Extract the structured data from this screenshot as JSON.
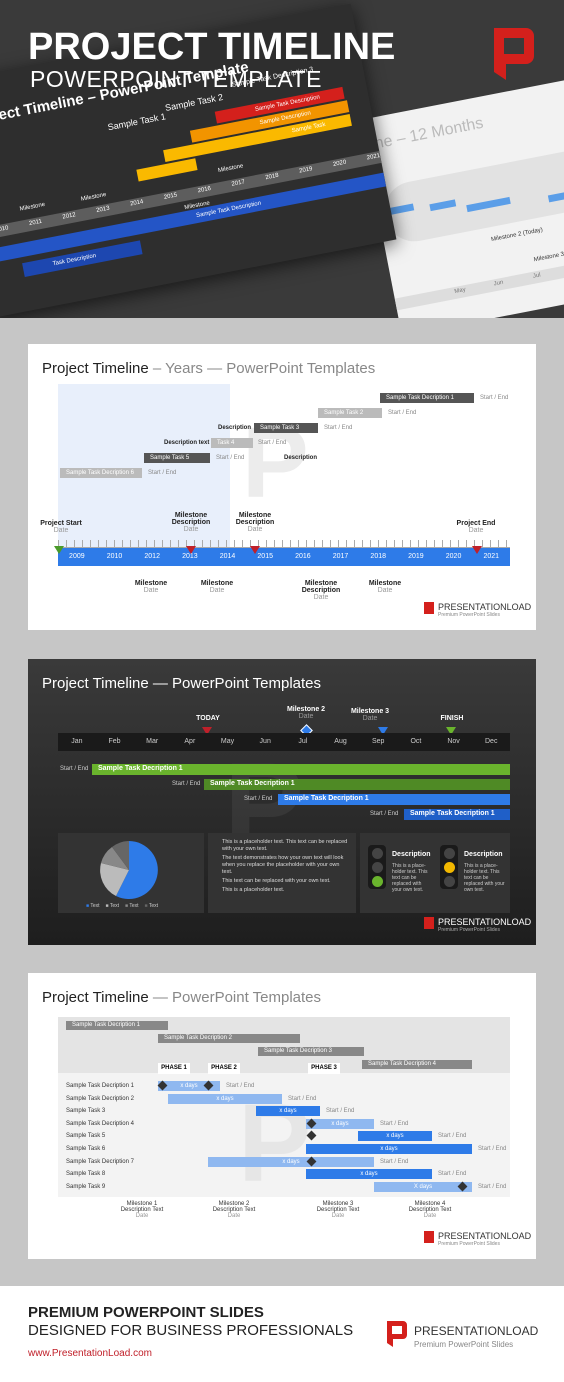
{
  "hero": {
    "title": "PROJECT TIMELINE",
    "subtitle": "POWERPOINT TEMPLATE",
    "preview_left": {
      "title": "Project Timeline – PowerPoint Template",
      "tasks": [
        "Sample Task 1",
        "Sample Task 2",
        "Sample Task Description 3"
      ],
      "bars": [
        "Sample Task Description",
        "Sample Description",
        "Sample Task",
        "Sample Task Description",
        "Task Description"
      ],
      "milestones": [
        "Milestone",
        "Milestone",
        "Milestone",
        "Milestone"
      ],
      "years": [
        "2010",
        "2011",
        "2012",
        "2013",
        "2014",
        "2015",
        "2016",
        "2017",
        "2018",
        "2019",
        "2020",
        "2021"
      ]
    },
    "preview_right": {
      "title_fragment": "ne – 12 Months",
      "milestones": [
        "Milestone 2 (Today)",
        "Milestone 3"
      ],
      "months": [
        "May",
        "Jun",
        "Jul"
      ]
    }
  },
  "slide1": {
    "title_bold": "Project Timeline",
    "title_rest": " – Years — PowerPoint Templates",
    "years": [
      "2009",
      "2010",
      "2012",
      "2013",
      "2014",
      "2015",
      "2016",
      "2017",
      "2018",
      "2019",
      "2020",
      "2021"
    ],
    "bars": [
      {
        "label": "Sample Task Decription 1",
        "note": "Start / End"
      },
      {
        "label": "Sample Task 2",
        "note": "Start / End"
      },
      {
        "label": "Sample Task 3",
        "note": "Start / End",
        "left": "Description"
      },
      {
        "label": "Task 4",
        "note": "Start / End",
        "left": "Description text"
      },
      {
        "label": "Sample Task 5",
        "note": "Start / End"
      },
      {
        "label": "Sample Task Decription 6",
        "note": "Start / End"
      }
    ],
    "description": "Description",
    "top_labels": [
      {
        "title": "Project Start",
        "sub": "Date"
      },
      {
        "title": "Milestone\nDescription",
        "sub": "Date"
      },
      {
        "title": "Milestone\nDescription",
        "sub": "Date"
      },
      {
        "title": "Project End",
        "sub": "Date"
      }
    ],
    "bottom_labels": [
      {
        "title": "Milestone",
        "sub": "Date"
      },
      {
        "title": "Milestone",
        "sub": "Date"
      },
      {
        "title": "Milestone\nDescription",
        "sub": "Date"
      },
      {
        "title": "Milestone",
        "sub": "Date"
      }
    ]
  },
  "slide2": {
    "title": "Project Timeline — PowerPoint Templates",
    "months": [
      "Jan",
      "Feb",
      "Mar",
      "Apr",
      "May",
      "Jun",
      "Jul",
      "Aug",
      "Sep",
      "Oct",
      "Nov",
      "Dec"
    ],
    "markers": [
      {
        "title": "TODAY",
        "sub": ""
      },
      {
        "title": "Milestone 2",
        "sub": "Date"
      },
      {
        "title": "Milestone 3",
        "sub": "Date"
      },
      {
        "title": "FINISH",
        "sub": ""
      }
    ],
    "bars": [
      {
        "note": "Start / End",
        "label": "Sample Task Decription 1"
      },
      {
        "note": "Start / End",
        "label": "Sample Task Decription 1"
      },
      {
        "note": "Start / End",
        "label": "Sample Task Decription 1"
      },
      {
        "note": "Start / End",
        "label": "Sample Task Decription 1"
      }
    ],
    "legend": [
      "Text",
      "Text",
      "Text",
      "Text"
    ],
    "bullets": [
      "This is a placeholder text. This text can be replaced with your own text.",
      "The text demonstrates how your own text will look when you replace the placeholder with your own text.",
      "This text can be replaced with your own text.",
      "This is a placeholder text."
    ],
    "lights": [
      {
        "title": "Description",
        "text": "This is a place-holder text. This text can be replaced with your own text."
      },
      {
        "title": "Description",
        "text": "This is a place-holder text. This text can be replaced with your own text."
      }
    ],
    "colors": {
      "bg": "#2b2b2b",
      "green": "#6ab42d",
      "blue": "#2e7be8"
    }
  },
  "slide3": {
    "title_bold": "Project Timeline",
    "title_rest": " — PowerPoint Templates",
    "top_bars": [
      "Sample Task Decription 1",
      "Sample Task Decription 2",
      "Sample Task Decription 3",
      "Sample Task Decription 4"
    ],
    "phases": [
      "PHASE 1",
      "PHASE 2",
      "PHASE 3"
    ],
    "rows": [
      {
        "label": "Sample Task Decription 1",
        "bar": "x days",
        "note": "Start / End"
      },
      {
        "label": "Sample Task Decription 2",
        "bar": "x days",
        "note": "Start / End"
      },
      {
        "label": "Sample Task 3",
        "bar": "x days",
        "note": "Start / End"
      },
      {
        "label": "Sample Task Decription 4",
        "bar": "x days",
        "note": "Start / End"
      },
      {
        "label": "Sample Task 5",
        "bar": "x days",
        "note": "Start / End"
      },
      {
        "label": "Sample Task 6",
        "bar": "x days",
        "note": "Start / End"
      },
      {
        "label": "Sample Task Decription 7",
        "bar": "x days",
        "note": "Start / End"
      },
      {
        "label": "Sample Task 8",
        "bar": "x days",
        "note": "Start / End"
      },
      {
        "label": "Sample Task 9",
        "bar": "X days",
        "note": "Start / End"
      }
    ],
    "milestones": [
      {
        "title": "Milestone 1\nDescription Text",
        "sub": "Date"
      },
      {
        "title": "Milestone 2\nDescription Text",
        "sub": "Date"
      },
      {
        "title": "Milestone 3\nDescription Text",
        "sub": "Date"
      },
      {
        "title": "Milestone 4\nDescription Text",
        "sub": "Date"
      }
    ]
  },
  "brand": {
    "name": "PRESENTATIONLOAD",
    "tagline": "Premium PowerPoint Slides"
  },
  "footer": {
    "line1": "PREMIUM POWERPOINT SLIDES",
    "line2": "DESIGNED FOR BUSINESS PROFESSIONALS",
    "url": "www.PresentationLoad.com",
    "brand": "PRESENTATIONLOAD",
    "tagline": "Premium PowerPoint Slides"
  }
}
